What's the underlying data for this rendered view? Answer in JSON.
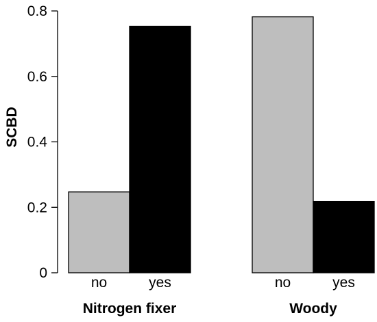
{
  "chart_data": {
    "type": "bar",
    "ylabel": "SCBD",
    "ylim": [
      0,
      0.8
    ],
    "yticks": [
      "0",
      "0.2",
      "0.4",
      "0.6",
      "0.8"
    ],
    "groups": [
      {
        "label": "Nitrogen fixer",
        "categories": [
          "no",
          "yes"
        ],
        "values": [
          0.247,
          0.753
        ],
        "colors": [
          "#bebebe",
          "#000000"
        ]
      },
      {
        "label": "Woody",
        "categories": [
          "no",
          "yes"
        ],
        "values": [
          0.782,
          0.218
        ],
        "colors": [
          "#bebebe",
          "#000000"
        ]
      }
    ],
    "grid": false,
    "legend": "none"
  }
}
